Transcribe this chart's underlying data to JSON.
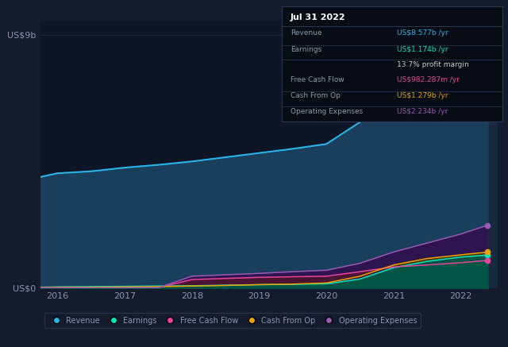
{
  "background_color": "#141b2d",
  "plot_bg_color": "#0d1526",
  "grid_color": "#1e2d45",
  "text_color": "#8899aa",
  "years": [
    2015.75,
    2016.0,
    2016.5,
    2017.0,
    2017.5,
    2018.0,
    2018.5,
    2019.0,
    2019.5,
    2020.0,
    2020.5,
    2021.0,
    2021.5,
    2022.0,
    2022.4
  ],
  "revenue": [
    3.95,
    4.08,
    4.15,
    4.28,
    4.38,
    4.5,
    4.65,
    4.8,
    4.95,
    5.12,
    5.9,
    6.9,
    7.65,
    8.3,
    8.577
  ],
  "earnings": [
    0.03,
    0.04,
    0.05,
    0.06,
    0.07,
    0.08,
    0.1,
    0.12,
    0.13,
    0.15,
    0.32,
    0.72,
    0.95,
    1.1,
    1.174
  ],
  "free_cash": [
    0.01,
    0.01,
    0.01,
    0.01,
    0.01,
    0.3,
    0.34,
    0.38,
    0.4,
    0.42,
    0.58,
    0.75,
    0.82,
    0.9,
    0.982
  ],
  "cash_from_op": [
    0.02,
    0.03,
    0.03,
    0.04,
    0.05,
    0.07,
    0.09,
    0.12,
    0.14,
    0.18,
    0.42,
    0.82,
    1.05,
    1.18,
    1.279
  ],
  "op_expenses": [
    0.01,
    0.01,
    0.01,
    0.01,
    0.01,
    0.42,
    0.47,
    0.52,
    0.58,
    0.63,
    0.88,
    1.28,
    1.6,
    1.92,
    2.234
  ],
  "revenue_color": "#29b5e8",
  "earnings_color": "#00e5c3",
  "free_cash_color": "#e8439a",
  "cash_from_op_color": "#e8a200",
  "op_expenses_color": "#9b59b6",
  "revenue_fill": "#1a3f5c",
  "earnings_fill": "#005544",
  "free_cash_fill": "#4a1535",
  "cash_from_op_fill": "#4a3500",
  "op_expenses_fill": "#2e1550",
  "highlight_x_start": 2021.85,
  "highlight_x_end": 2022.55,
  "ylim": [
    0,
    9.5
  ],
  "xlim": [
    2015.75,
    2022.55
  ],
  "xticks": [
    2016,
    2017,
    2018,
    2019,
    2020,
    2021,
    2022
  ],
  "ytick_9b_label": "US$9b",
  "ytick_0_label": "US$0",
  "tooltip_title": "Jul 31 2022",
  "tooltip_bg": "#080c15",
  "tooltip_border": "#2a3a55",
  "tooltip_rows": [
    [
      "Revenue",
      "US$8.577b /yr",
      "#29b5e8",
      true
    ],
    [
      "Earnings",
      "US$1.174b /yr",
      "#00e5c3",
      true
    ],
    [
      "",
      "13.7% profit margin",
      "#cccccc",
      false
    ],
    [
      "Free Cash Flow",
      "US$982.287m /yr",
      "#e8439a",
      true
    ],
    [
      "Cash From Op",
      "US$1.279b /yr",
      "#e8a200",
      true
    ],
    [
      "Operating Expenses",
      "US$2.234b /yr",
      "#9b59b6",
      true
    ]
  ],
  "legend_items": [
    [
      "Revenue",
      "#29b5e8"
    ],
    [
      "Earnings",
      "#00e5c3"
    ],
    [
      "Free Cash Flow",
      "#e8439a"
    ],
    [
      "Cash From Op",
      "#e8a200"
    ],
    [
      "Operating Expenses",
      "#9b59b6"
    ]
  ]
}
